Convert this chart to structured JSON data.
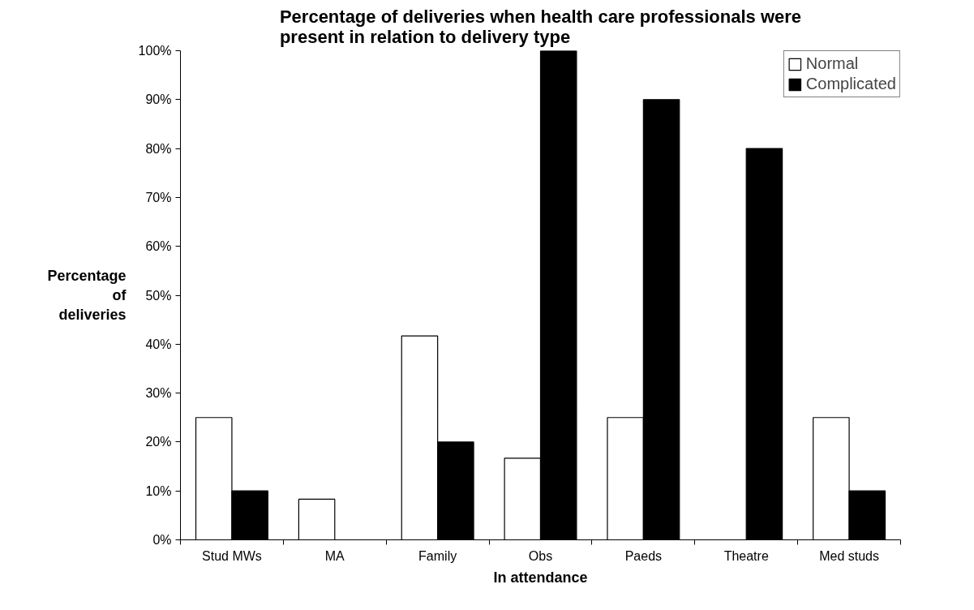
{
  "chart_data": {
    "type": "bar",
    "title": "Percentage of deliveries when health care professionals were present in relation to delivery  type",
    "xlabel": "In attendance",
    "ylabel": "Percentage of deliveries",
    "categories": [
      "Stud MWs",
      "MA",
      "Family",
      "Obs",
      "Paeds",
      "Theatre",
      "Med studs"
    ],
    "series": [
      {
        "name": "Normal",
        "color": "#ffffff",
        "values": [
          25,
          8.3,
          41.7,
          16.7,
          25,
          null,
          25
        ]
      },
      {
        "name": "Complicated",
        "color": "#000000",
        "values": [
          10,
          null,
          20,
          100,
          90,
          80,
          10
        ]
      }
    ],
    "ylim": [
      0,
      100
    ],
    "yticks": [
      {
        "value": 0,
        "label": "0%"
      },
      {
        "value": 10,
        "label": "10%"
      },
      {
        "value": 20,
        "label": "20%"
      },
      {
        "value": 30,
        "label": "30%"
      },
      {
        "value": 40,
        "label": "40%"
      },
      {
        "value": 50,
        "label": "50%"
      },
      {
        "value": 60,
        "label": "60%"
      },
      {
        "value": 70,
        "label": "70%"
      },
      {
        "value": 80,
        "label": "80%"
      },
      {
        "value": 90,
        "label": "90%"
      },
      {
        "value": 100,
        "label": "100%"
      }
    ],
    "grid": false,
    "legend": "top right"
  }
}
